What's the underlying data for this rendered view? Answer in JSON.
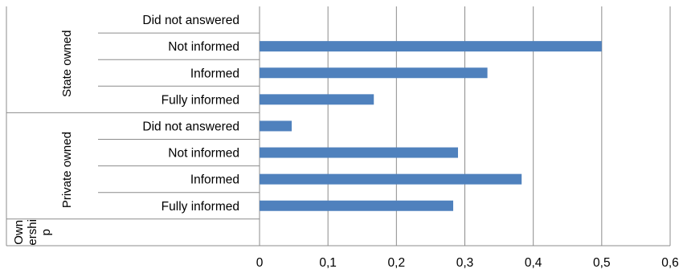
{
  "chart_data": {
    "type": "bar",
    "orientation": "horizontal",
    "groups": [
      {
        "name": "State owned",
        "categories": [
          "Did not answered",
          "Not informed",
          "Informed",
          "Fully informed"
        ],
        "values": [
          0,
          0.5,
          0.333,
          0.167
        ]
      },
      {
        "name": "Private owned",
        "categories": [
          "Did not answered",
          "Not informed",
          "Informed",
          "Fully informed"
        ],
        "values": [
          0.047,
          0.29,
          0.383,
          0.283
        ]
      },
      {
        "name": "Ownership",
        "label_lines": [
          "Own",
          "ershi",
          "p"
        ],
        "categories": [
          ""
        ],
        "values": [
          null
        ]
      }
    ],
    "xlim": [
      0,
      0.6
    ],
    "xticks": [
      "0",
      "0,1",
      "0,2",
      "0,3",
      "0,4",
      "0,5",
      "0,6"
    ],
    "grid": "vertical",
    "bar_color": "#4f81bd",
    "legend": "none"
  }
}
